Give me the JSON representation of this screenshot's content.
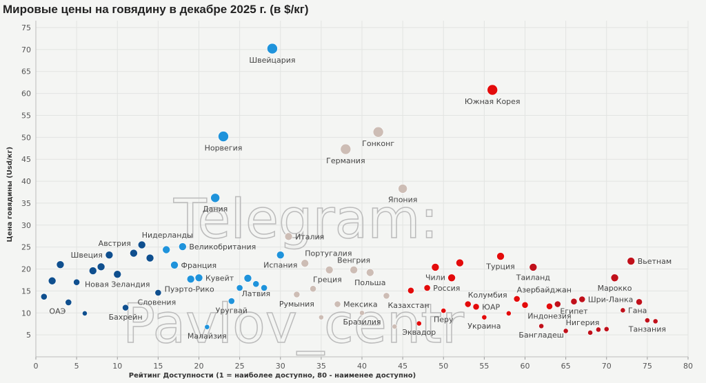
{
  "chart_data": {
    "type": "scatter",
    "title": "Мировые цены на говядину в декабре 2025 г. (в $/кг)",
    "xlabel": "Рейтинг Доступности (1 = наиболее доступно, 80 - наименее доступно)",
    "ylabel": "Цена говядины (Usd/кг)",
    "xlim": [
      0,
      80
    ],
    "ylim": [
      0,
      75
    ],
    "xticks": [
      0,
      5,
      10,
      15,
      20,
      25,
      30,
      35,
      40,
      45,
      50,
      55,
      60,
      65,
      70,
      75,
      80
    ],
    "yticks": [
      5,
      10,
      15,
      20,
      25,
      30,
      35,
      40,
      45,
      50,
      55,
      60,
      65,
      70,
      75
    ],
    "grid": true,
    "watermark": [
      "Telegram:",
      "Pavlov_centr"
    ],
    "colors": {
      "darkblue": "#0f4f8e",
      "lightblue": "#1f93db",
      "tan": "#cdbdb5",
      "red": "#e30b0b",
      "darkred": "#c0101a"
    },
    "points": [
      {
        "x": 1,
        "y": 13.7,
        "c": "darkblue"
      },
      {
        "x": 2,
        "y": 17.3,
        "c": "darkblue"
      },
      {
        "x": 3,
        "y": 21,
        "c": "darkblue"
      },
      {
        "x": 4,
        "y": 12.4,
        "c": "darkblue",
        "label": "ОАЭ",
        "pos": "below-left"
      },
      {
        "x": 5,
        "y": 17,
        "c": "darkblue"
      },
      {
        "x": 6,
        "y": 9.9,
        "c": "darkblue"
      },
      {
        "x": 7,
        "y": 19.6,
        "c": "darkblue"
      },
      {
        "x": 8,
        "y": 20.5,
        "c": "darkblue"
      },
      {
        "x": 9,
        "y": 23.2,
        "c": "darkblue",
        "label": "Швеция",
        "pos": "left"
      },
      {
        "x": 10,
        "y": 18.8,
        "c": "darkblue",
        "label": "Новая Зеландия",
        "pos": "below"
      },
      {
        "x": 11,
        "y": 11.2,
        "c": "darkblue",
        "label": "Бахрейн",
        "pos": "below"
      },
      {
        "x": 12,
        "y": 23.6,
        "c": "darkblue",
        "label": "Австрия",
        "pos": "above-left"
      },
      {
        "x": 13,
        "y": 25.5,
        "c": "darkblue",
        "label": "Нидерланды",
        "pos": "above-right"
      },
      {
        "x": 14,
        "y": 22.5,
        "c": "darkblue"
      },
      {
        "x": 15,
        "y": 14.6,
        "c": "darkblue",
        "label": "Словения",
        "pos": "below-center"
      },
      {
        "x": 16,
        "y": 24.4,
        "c": "lightblue"
      },
      {
        "x": 17,
        "y": 20.9,
        "c": "lightblue",
        "label": "Франция",
        "pos": "right"
      },
      {
        "x": 18,
        "y": 25.1,
        "c": "lightblue",
        "label": "Великобритания",
        "pos": "right"
      },
      {
        "x": 19,
        "y": 17.7,
        "c": "lightblue",
        "label": "Пуэрто-Рико",
        "pos": "below-center"
      },
      {
        "x": 20,
        "y": 18,
        "c": "lightblue",
        "label": "Кувейт",
        "pos": "right"
      },
      {
        "x": 21,
        "y": 6.8,
        "c": "lightblue",
        "label": "Малайзия",
        "pos": "below"
      },
      {
        "x": 22,
        "y": 36.2,
        "c": "lightblue",
        "label": "Дания",
        "pos": "below"
      },
      {
        "x": 23,
        "y": 50.2,
        "c": "lightblue",
        "label": "Норвегия",
        "pos": "below"
      },
      {
        "x": 24,
        "y": 12.7,
        "c": "lightblue",
        "label": "Уругвай",
        "pos": "below"
      },
      {
        "x": 25,
        "y": 15.7,
        "c": "lightblue"
      },
      {
        "x": 26,
        "y": 17.9,
        "c": "lightblue"
      },
      {
        "x": 27,
        "y": 16.6,
        "c": "lightblue",
        "label": "Латвия",
        "pos": "below"
      },
      {
        "x": 28,
        "y": 15.7,
        "c": "lightblue"
      },
      {
        "x": 29,
        "y": 70.2,
        "c": "lightblue",
        "label": "Швейцария",
        "pos": "below"
      },
      {
        "x": 30,
        "y": 23.2,
        "c": "lightblue",
        "label": "Испания",
        "pos": "below"
      },
      {
        "x": 31,
        "y": 27.4,
        "c": "tan",
        "label": "Италия",
        "pos": "right"
      },
      {
        "x": 32,
        "y": 14.2,
        "c": "tan",
        "label": "Румыния",
        "pos": "below"
      },
      {
        "x": 33,
        "y": 21.3,
        "c": "tan",
        "label": "Португалия",
        "pos": "above-right"
      },
      {
        "x": 34,
        "y": 15.5,
        "c": "tan",
        "label": "Греция",
        "pos": "above-right"
      },
      {
        "x": 35,
        "y": 9,
        "c": "tan"
      },
      {
        "x": 36,
        "y": 19.8,
        "c": "tan"
      },
      {
        "x": 37,
        "y": 12,
        "c": "tan",
        "label": "Мексика",
        "pos": "right"
      },
      {
        "x": 38,
        "y": 47.3,
        "c": "tan",
        "label": "Германия",
        "pos": "below"
      },
      {
        "x": 39,
        "y": 19.8,
        "c": "tan",
        "label": "Венгрия",
        "pos": "above"
      },
      {
        "x": 40,
        "y": 10,
        "c": "tan",
        "label": "Бразилия",
        "pos": "below"
      },
      {
        "x": 41,
        "y": 19.2,
        "c": "tan",
        "label": "Польша",
        "pos": "below"
      },
      {
        "x": 42,
        "y": 51.2,
        "c": "tan",
        "label": "Гонконг",
        "pos": "below"
      },
      {
        "x": 43,
        "y": 13.9,
        "c": "tan",
        "label": "Казахстан",
        "pos": "below-right"
      },
      {
        "x": 44,
        "y": 6.9,
        "c": "tan"
      },
      {
        "x": 45,
        "y": 38.3,
        "c": "tan",
        "label": "Япония",
        "pos": "below"
      },
      {
        "x": 46,
        "y": 15.1,
        "c": "red"
      },
      {
        "x": 47,
        "y": 7.6,
        "c": "red",
        "label": "Эквадор",
        "pos": "below"
      },
      {
        "x": 48,
        "y": 15.7,
        "c": "red",
        "label": "Россия",
        "pos": "right"
      },
      {
        "x": 49,
        "y": 20.4,
        "c": "red",
        "label": "Чили",
        "pos": "below"
      },
      {
        "x": 50,
        "y": 10.5,
        "c": "red",
        "label": "Перу",
        "pos": "below"
      },
      {
        "x": 51,
        "y": 18,
        "c": "red"
      },
      {
        "x": 52,
        "y": 21.4,
        "c": "red"
      },
      {
        "x": 53,
        "y": 12,
        "c": "red",
        "label": "Колумбия",
        "pos": "above-right"
      },
      {
        "x": 54,
        "y": 11.4,
        "c": "red",
        "label": "ЮАР",
        "pos": "right"
      },
      {
        "x": 55,
        "y": 9,
        "c": "red",
        "label": "Украина",
        "pos": "below"
      },
      {
        "x": 56,
        "y": 60.8,
        "c": "red",
        "label": "Южная Корея",
        "pos": "below"
      },
      {
        "x": 57,
        "y": 22.9,
        "c": "red",
        "label": "Турция",
        "pos": "below"
      },
      {
        "x": 58,
        "y": 9.9,
        "c": "red"
      },
      {
        "x": 59,
        "y": 13.2,
        "c": "red",
        "label": "Азербайджан",
        "pos": "above-right"
      },
      {
        "x": 60,
        "y": 11.8,
        "c": "red"
      },
      {
        "x": 61,
        "y": 20.4,
        "c": "darkred",
        "label": "Таиланд",
        "pos": "below"
      },
      {
        "x": 62,
        "y": 7,
        "c": "darkred",
        "label": "Бангладеш",
        "pos": "below"
      },
      {
        "x": 63,
        "y": 11.5,
        "c": "red",
        "label": "Индонезия",
        "pos": "below"
      },
      {
        "x": 64,
        "y": 12,
        "c": "darkred"
      },
      {
        "x": 65,
        "y": 5.9,
        "c": "darkred",
        "label": "Нигерия",
        "pos": "above-right"
      },
      {
        "x": 66,
        "y": 12.6,
        "c": "darkred",
        "label": "Египет",
        "pos": "below"
      },
      {
        "x": 67,
        "y": 13.1,
        "c": "darkred",
        "label": "Шри-Ланка",
        "pos": "right"
      },
      {
        "x": 68,
        "y": 5.5,
        "c": "darkred"
      },
      {
        "x": 69,
        "y": 6.2,
        "c": "darkred"
      },
      {
        "x": 70,
        "y": 6.3,
        "c": "darkred"
      },
      {
        "x": 71,
        "y": 18,
        "c": "darkred",
        "label": "Марокко",
        "pos": "below"
      },
      {
        "x": 72,
        "y": 10.6,
        "c": "darkred",
        "label": "Гана",
        "pos": "right"
      },
      {
        "x": 73,
        "y": 21.8,
        "c": "darkred",
        "label": "Вьетнам",
        "pos": "right"
      },
      {
        "x": 74,
        "y": 12.5,
        "c": "darkred"
      },
      {
        "x": 75,
        "y": 8.3,
        "c": "darkred",
        "label": "Танзания",
        "pos": "below"
      },
      {
        "x": 76,
        "y": 8.1,
        "c": "darkred"
      }
    ]
  }
}
